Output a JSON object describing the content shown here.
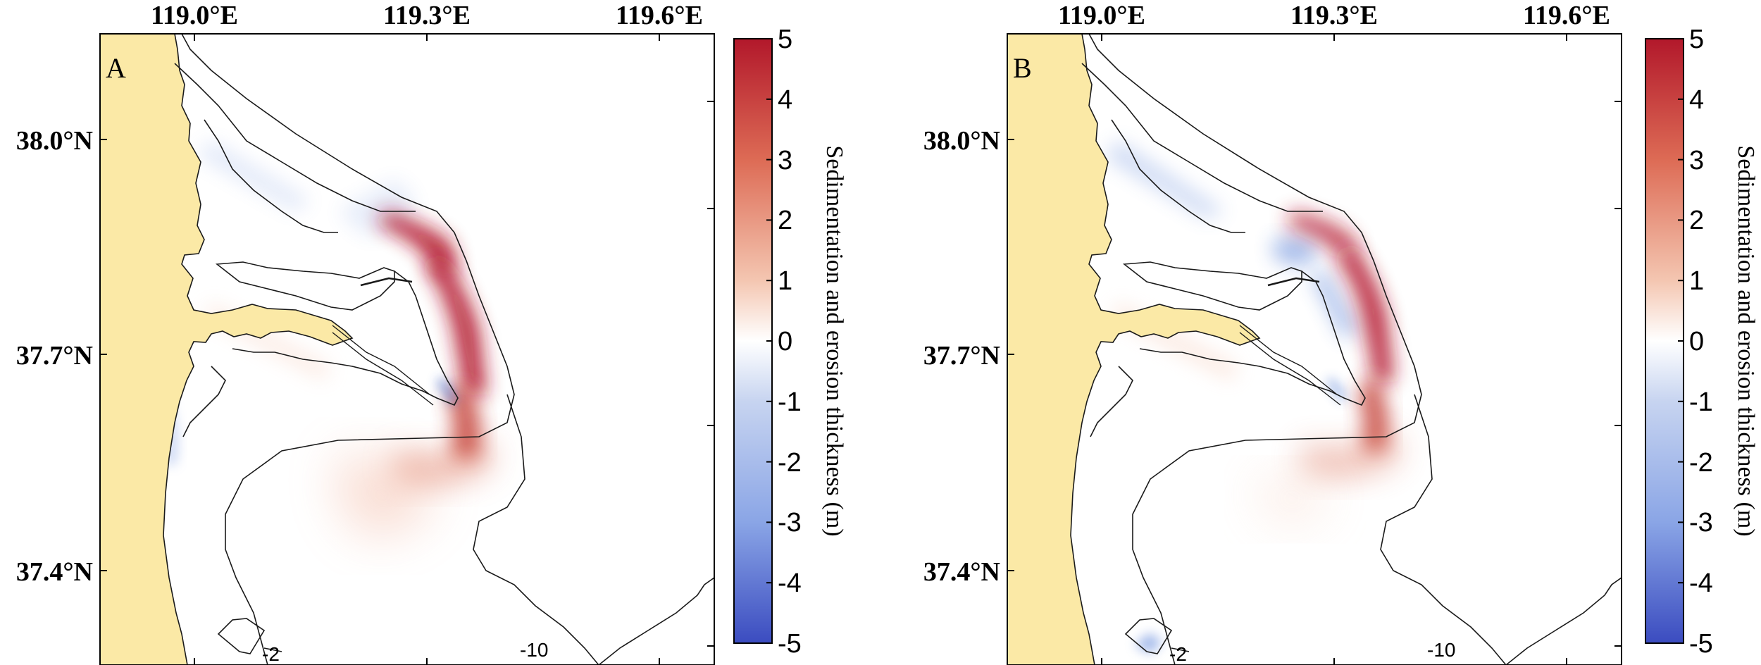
{
  "panels": [
    {
      "id": "A",
      "label": "A",
      "lon_ticks": [
        "119.0°E",
        "119.3°E",
        "119.6°E"
      ],
      "lat_ticks": [
        "38.0°N",
        "37.7°N",
        "37.4°N"
      ],
      "contour_labels": [
        "-2",
        "-10"
      ],
      "colorbar": {
        "title": "Sedimentation and erosion thickness (m)",
        "ticks": [
          "5",
          "4",
          "3",
          "2",
          "1",
          "0",
          "-1",
          "-2",
          "-3",
          "-4",
          "-5"
        ],
        "range": [
          -5,
          5
        ]
      }
    },
    {
      "id": "B",
      "label": "B",
      "lon_ticks": [
        "119.0°E",
        "119.3°E",
        "119.6°E"
      ],
      "lat_ticks": [
        "38.0°N",
        "37.7°N",
        "37.4°N"
      ],
      "contour_labels": [
        "-2",
        "-10"
      ],
      "colorbar": {
        "title": "Sedimentation and erosion thickness (m)",
        "ticks": [
          "5",
          "4",
          "3",
          "2",
          "1",
          "0",
          "-1",
          "-2",
          "-3",
          "-4",
          "-5"
        ],
        "range": [
          -5,
          5
        ]
      }
    }
  ],
  "colors": {
    "land": "#fbe9a6",
    "sea": "#ffffff",
    "deposition_max": "#b2182b",
    "erosion_max": "#3b4cc0",
    "coastline": "#1a1a1a"
  }
}
